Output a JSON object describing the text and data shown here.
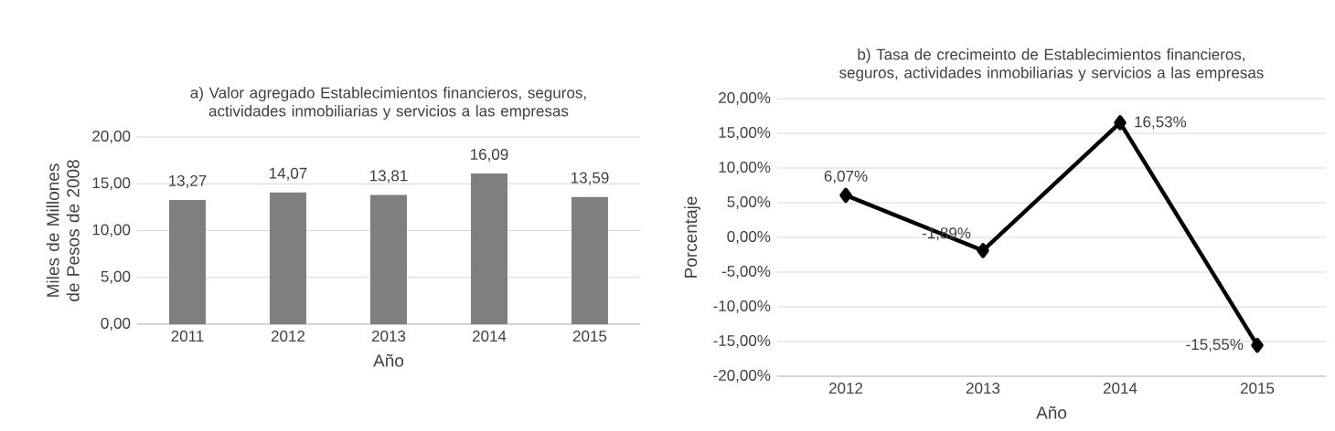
{
  "chart_data": [
    {
      "type": "bar",
      "title": "a) Valor agregado Establecimientos financieros, seguros, actividades inmobiliarias y servicios a las empresas",
      "xlabel": "Año",
      "ylabel": "Miles de Millones de Pesos de 2008",
      "categories": [
        "2011",
        "2012",
        "2013",
        "2014",
        "2015"
      ],
      "values": [
        13.27,
        14.07,
        13.81,
        16.09,
        13.59
      ],
      "value_labels": [
        "13,27",
        "14,07",
        "13,81",
        "16,09",
        "13,59"
      ],
      "color": "#7f7f7f",
      "ylim": [
        0,
        20
      ],
      "yticks": [
        {
          "value": 0,
          "label": "0,00"
        },
        {
          "value": 5,
          "label": "5,00"
        },
        {
          "value": 10,
          "label": "10,00"
        },
        {
          "value": 15,
          "label": "15,00"
        },
        {
          "value": 20,
          "label": "20,00"
        }
      ],
      "grid": "y"
    },
    {
      "type": "line",
      "title": "b) Tasa de crecimeinto de Establecimientos financieros, seguros, actividades inmobiliarias y servicios a las empresas",
      "xlabel": "Año",
      "ylabel": "Porcentaje",
      "categories": [
        "2012",
        "2013",
        "2014",
        "2015"
      ],
      "values": [
        6.07,
        -1.89,
        16.53,
        -15.55
      ],
      "value_labels": [
        "6,07%",
        "-1,89%",
        "16,53%",
        "-15,55%"
      ],
      "color": "#000000",
      "marker": "diamond",
      "ylim": [
        -20,
        20
      ],
      "yticks": [
        {
          "value": -20,
          "label": "-20,00%"
        },
        {
          "value": -15,
          "label": "-15,00%"
        },
        {
          "value": -10,
          "label": "-10,00%"
        },
        {
          "value": -5,
          "label": "-5,00%"
        },
        {
          "value": 0,
          "label": "0,00%"
        },
        {
          "value": 5,
          "label": "5,00%"
        },
        {
          "value": 10,
          "label": "10,00%"
        },
        {
          "value": 15,
          "label": "15,00%"
        },
        {
          "value": 20,
          "label": "20,00%"
        }
      ],
      "grid": "y"
    }
  ]
}
